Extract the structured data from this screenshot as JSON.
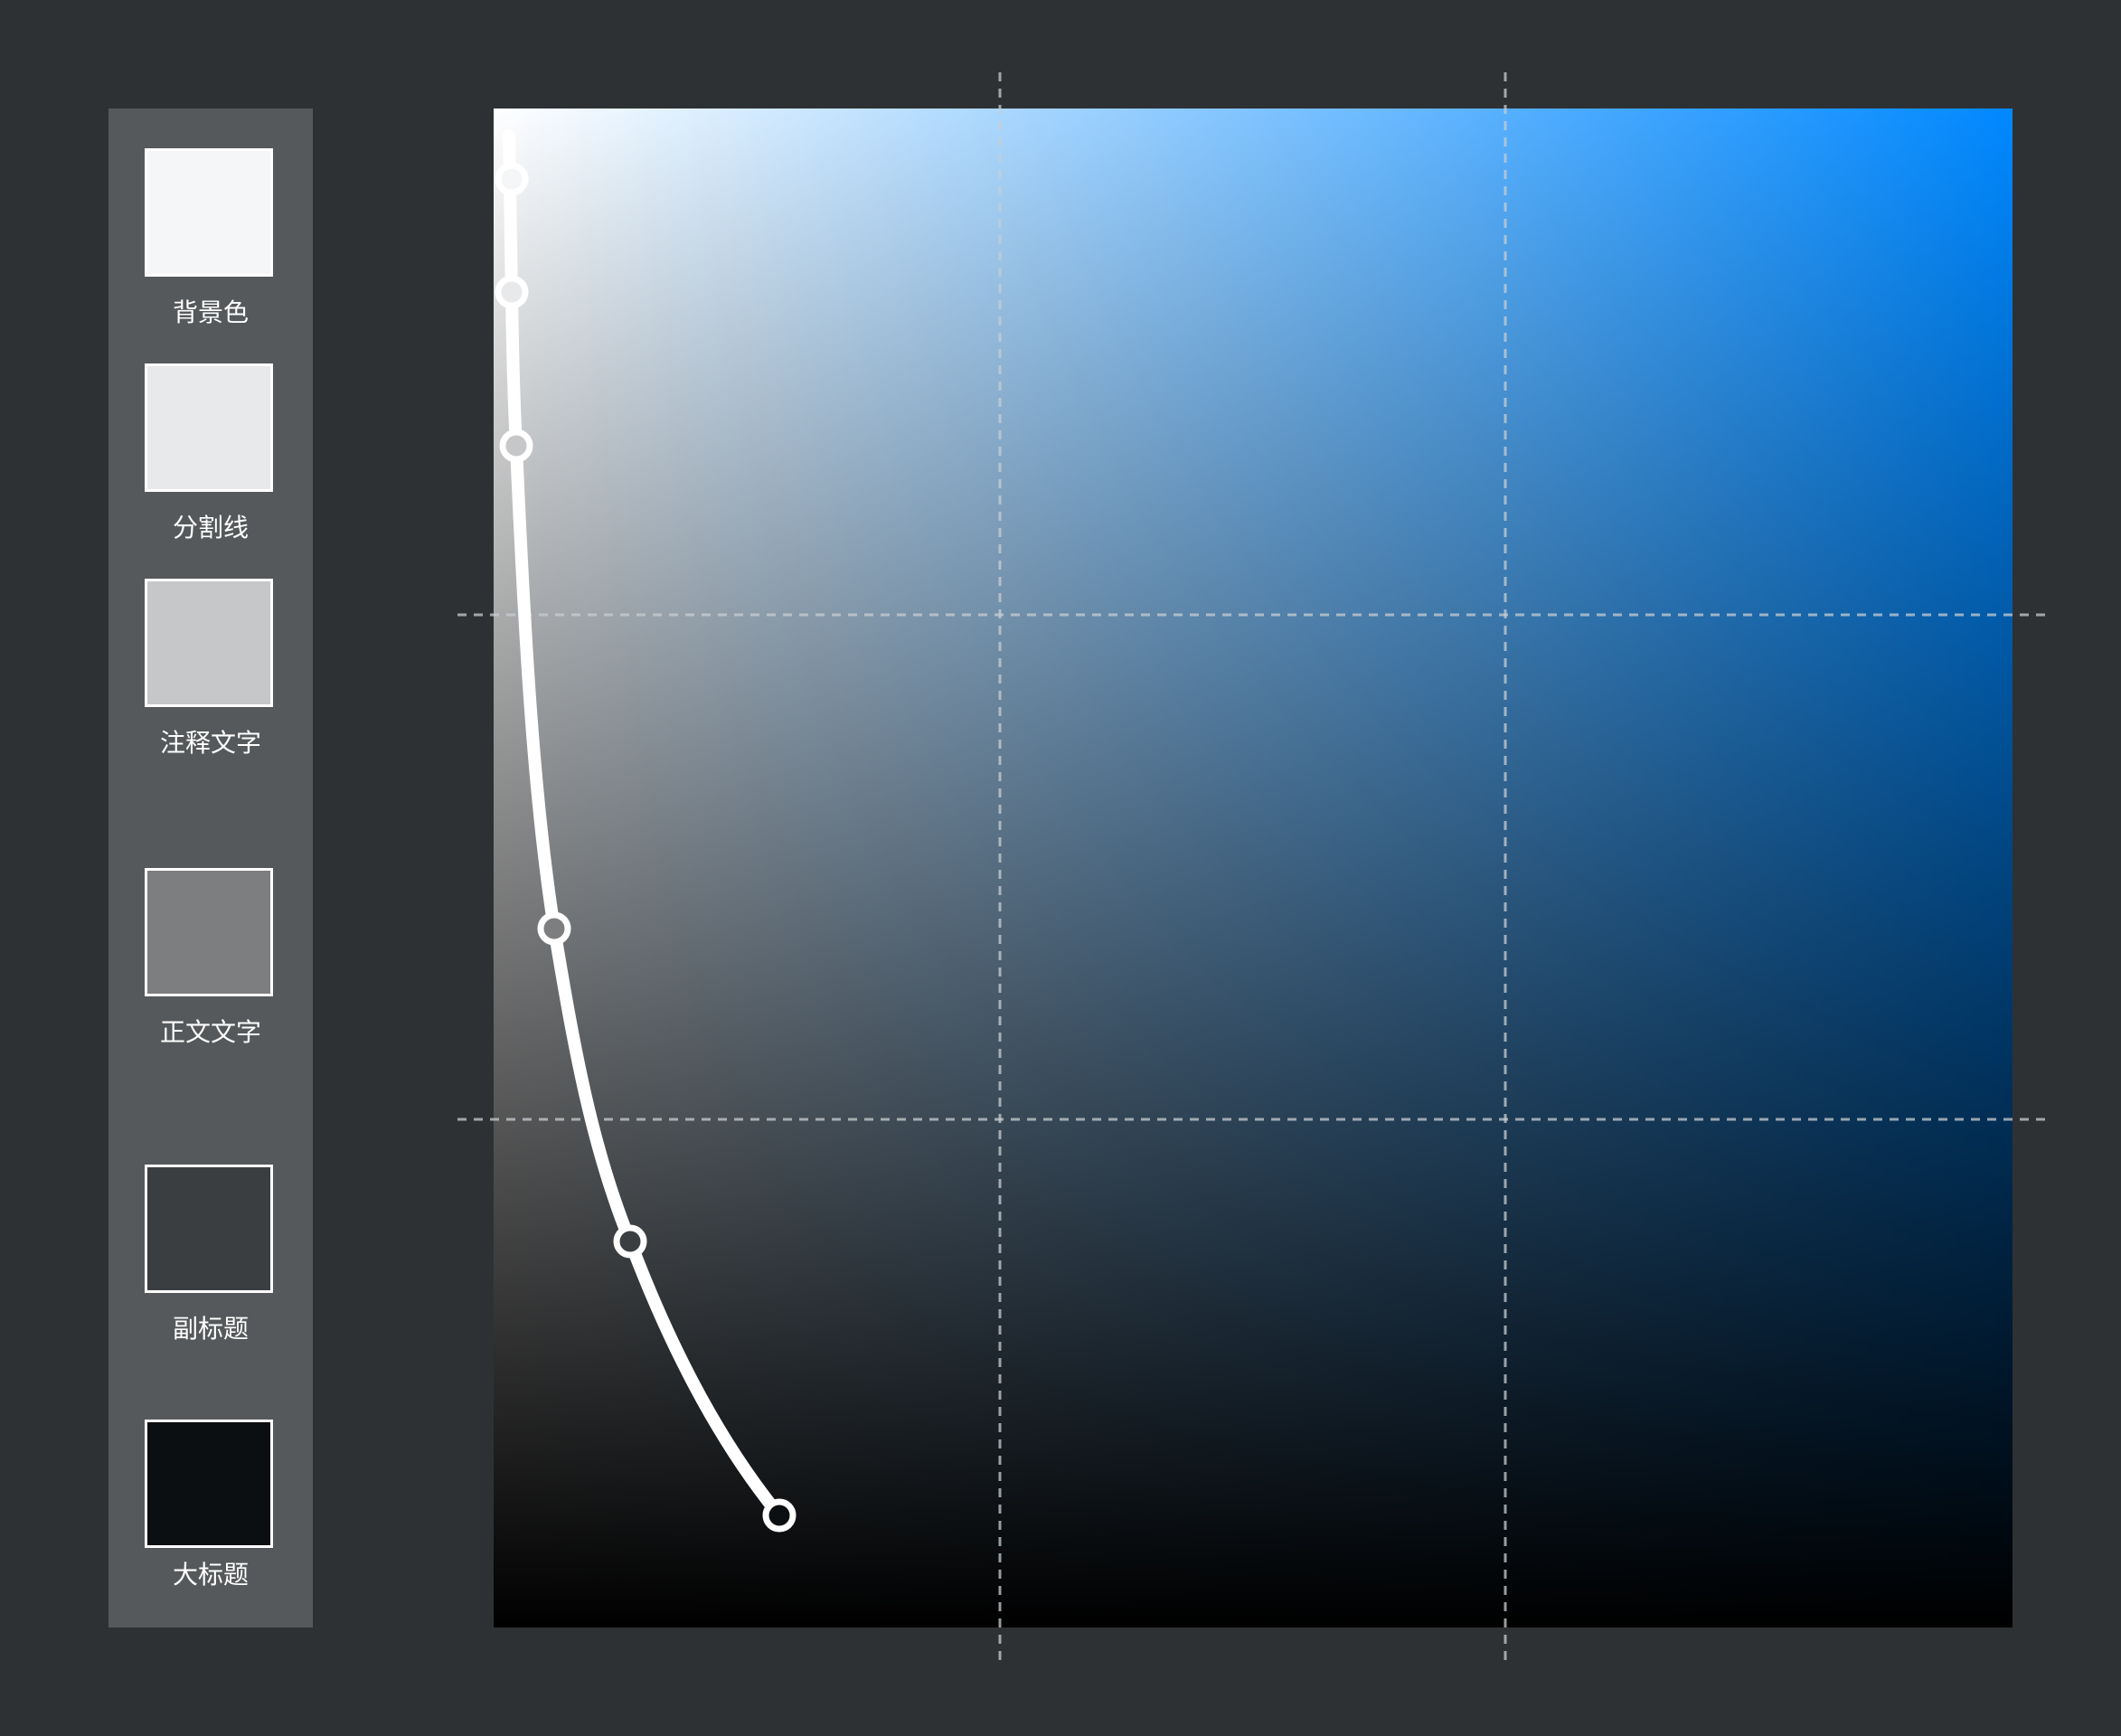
{
  "palette": {
    "swatches": [
      {
        "label": "背景色",
        "color": "#f5f6f7"
      },
      {
        "label": "分割线",
        "color": "#e8e9ea"
      },
      {
        "label": "注释文字",
        "color": "#c6c7c9"
      },
      {
        "label": "正文文字",
        "color": "#7d7e80"
      },
      {
        "label": "副标题",
        "color": "#3b3e41"
      },
      {
        "label": "大标题",
        "color": "#0c0f12"
      }
    ]
  },
  "color_field": {
    "top_left": "#ffffff",
    "top_right": "#0088ff",
    "bottom": "#000000",
    "background": "#2e3134"
  },
  "curve": {
    "color": "#ffffff"
  }
}
